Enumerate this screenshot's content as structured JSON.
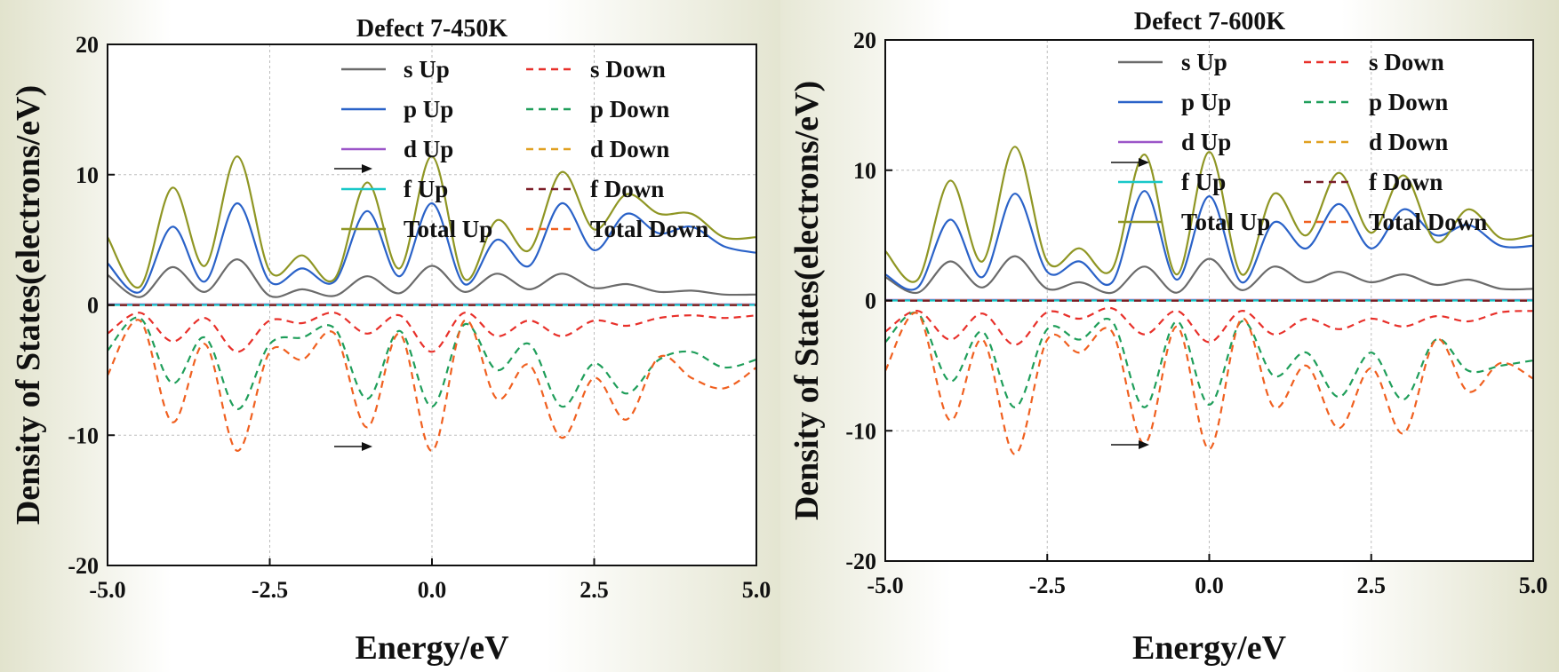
{
  "legend_labels": {
    "s_up": "s Up",
    "s_down": "s Down",
    "p_up": "p Up",
    "p_down": "p Down",
    "d_up": "d Up",
    "d_down": "d Down",
    "f_up": "f Up",
    "f_down": "f Down",
    "total_up": "Total Up",
    "total_down": "Total Down"
  },
  "series_colors": {
    "s_up": "#6b6b6b",
    "s_down": "#e8302a",
    "p_up": "#2a62c8",
    "p_down": "#1f9e5a",
    "d_up": "#9b55c8",
    "d_down": "#e0a020",
    "f_up": "#18c8c8",
    "f_down": "#7a1e28",
    "total_up": "#8f9624",
    "total_down": "#f06020"
  },
  "chart_data": [
    {
      "type": "line",
      "title": "Defect 7-450K",
      "xlabel": "Energy/eV",
      "ylabel": "Density of States(electrons/eV)",
      "xlim": [
        -5.0,
        5.0
      ],
      "ylim": [
        -20,
        20
      ],
      "xticks": [
        "-5.0",
        "-2.5",
        "0.0",
        "2.5",
        "5.0"
      ],
      "yticks": [
        "-20",
        "-10",
        "0",
        "10",
        "20"
      ],
      "x": [
        -5.0,
        -4.5,
        -4.0,
        -3.5,
        -3.0,
        -2.5,
        -2.0,
        -1.5,
        -1.0,
        -0.5,
        0.0,
        0.5,
        1.0,
        1.5,
        2.0,
        2.5,
        3.0,
        3.5,
        4.0,
        4.5,
        5.0
      ],
      "series": [
        {
          "key": "s_up",
          "dashed": false,
          "values": [
            2.3,
            0.6,
            2.9,
            1.0,
            3.5,
            0.7,
            1.2,
            0.7,
            2.2,
            0.9,
            3.0,
            1.0,
            2.4,
            1.2,
            2.4,
            1.3,
            1.6,
            1.0,
            1.1,
            0.8,
            0.8
          ]
        },
        {
          "key": "p_up",
          "dashed": false,
          "values": [
            3.2,
            1.0,
            6.0,
            1.8,
            7.8,
            1.8,
            2.8,
            1.8,
            7.2,
            2.2,
            7.8,
            1.6,
            5.0,
            3.0,
            7.8,
            4.2,
            7.0,
            5.5,
            6.0,
            4.5,
            4.0
          ]
        },
        {
          "key": "d_up",
          "dashed": false,
          "values": [
            0.05,
            0.05,
            0.05,
            0.05,
            0.05,
            0.05,
            0.05,
            0.05,
            0.05,
            0.05,
            0.05,
            0.05,
            0.05,
            0.05,
            0.05,
            0.05,
            0.05,
            0.05,
            0.05,
            0.05,
            0.05
          ]
        },
        {
          "key": "f_up",
          "dashed": false,
          "values": [
            0.0,
            0.0,
            0.0,
            0.0,
            0.0,
            0.0,
            0.0,
            0.0,
            0.0,
            0.0,
            0.0,
            0.0,
            0.0,
            0.0,
            0.0,
            0.0,
            0.0,
            0.0,
            0.0,
            0.0,
            0.0
          ]
        },
        {
          "key": "total_up",
          "dashed": false,
          "values": [
            5.2,
            1.4,
            9.0,
            3.0,
            11.4,
            2.6,
            3.8,
            2.0,
            9.4,
            2.8,
            11.4,
            2.0,
            6.5,
            4.2,
            10.2,
            5.8,
            8.5,
            7.0,
            7.0,
            5.2,
            5.2
          ]
        },
        {
          "key": "s_down",
          "dashed": true,
          "values": [
            -2.2,
            -0.6,
            -2.8,
            -1.0,
            -3.6,
            -1.2,
            -1.4,
            -0.6,
            -2.2,
            -0.8,
            -3.6,
            -0.6,
            -2.4,
            -1.2,
            -2.4,
            -1.2,
            -1.6,
            -1.0,
            -0.8,
            -1.0,
            -0.8
          ]
        },
        {
          "key": "p_down",
          "dashed": true,
          "values": [
            -3.5,
            -1.0,
            -6.0,
            -2.5,
            -8.0,
            -3.0,
            -2.5,
            -1.8,
            -7.2,
            -2.0,
            -7.8,
            -1.5,
            -5.0,
            -3.0,
            -7.8,
            -4.5,
            -6.8,
            -4.2,
            -3.6,
            -4.8,
            -4.2
          ]
        },
        {
          "key": "d_down",
          "dashed": true,
          "values": [
            0.0,
            0.0,
            0.0,
            0.0,
            0.0,
            0.0,
            0.0,
            0.0,
            0.0,
            0.0,
            0.0,
            0.0,
            0.0,
            0.0,
            0.0,
            0.0,
            0.0,
            0.0,
            0.0,
            0.0,
            0.0
          ]
        },
        {
          "key": "f_down",
          "dashed": true,
          "values": [
            -0.02,
            -0.02,
            -0.02,
            -0.02,
            -0.02,
            -0.02,
            -0.02,
            -0.02,
            -0.02,
            -0.02,
            -0.02,
            -0.02,
            -0.02,
            -0.02,
            -0.02,
            -0.02,
            -0.02,
            -0.02,
            -0.02,
            -0.02,
            -0.02
          ]
        },
        {
          "key": "total_down",
          "dashed": true,
          "values": [
            -5.4,
            -1.2,
            -9.0,
            -3.0,
            -11.2,
            -3.6,
            -4.2,
            -2.2,
            -9.4,
            -2.2,
            -11.2,
            -1.2,
            -7.2,
            -4.6,
            -10.2,
            -5.6,
            -8.8,
            -4.0,
            -5.6,
            -6.4,
            -4.8
          ]
        }
      ],
      "legend": {
        "location": "top-right",
        "columns": 2
      }
    },
    {
      "type": "line",
      "title": "Defect 7-600K",
      "xlabel": "Energy/eV",
      "ylabel": "Density of States(electrons/eV)",
      "xlim": [
        -5.0,
        5.0
      ],
      "ylim": [
        -20,
        20
      ],
      "xticks": [
        "-5.0",
        "-2.5",
        "0.0",
        "2.5",
        "5.0"
      ],
      "yticks": [
        "-20",
        "-10",
        "0",
        "10",
        "20"
      ],
      "x": [
        -5.0,
        -4.5,
        -4.0,
        -3.5,
        -3.0,
        -2.5,
        -2.0,
        -1.5,
        -1.0,
        -0.5,
        0.0,
        0.5,
        1.0,
        1.5,
        2.0,
        2.5,
        3.0,
        3.5,
        4.0,
        4.5,
        5.0
      ],
      "series": [
        {
          "key": "s_up",
          "dashed": false,
          "values": [
            1.8,
            0.6,
            3.0,
            1.0,
            3.4,
            0.9,
            1.4,
            0.6,
            2.6,
            0.6,
            3.2,
            0.8,
            2.6,
            1.4,
            2.2,
            1.4,
            2.0,
            1.2,
            1.6,
            0.9,
            0.9
          ]
        },
        {
          "key": "p_up",
          "dashed": false,
          "values": [
            2.0,
            1.0,
            6.2,
            1.8,
            8.2,
            2.2,
            3.0,
            1.4,
            8.4,
            1.6,
            8.0,
            1.4,
            6.0,
            4.0,
            7.4,
            4.0,
            7.0,
            5.0,
            5.8,
            4.2,
            4.2
          ]
        },
        {
          "key": "d_up",
          "dashed": false,
          "values": [
            0.05,
            0.05,
            0.05,
            0.05,
            0.05,
            0.05,
            0.05,
            0.05,
            0.05,
            0.05,
            0.05,
            0.05,
            0.05,
            0.05,
            0.05,
            0.05,
            0.05,
            0.05,
            0.05,
            0.05,
            0.05
          ]
        },
        {
          "key": "f_up",
          "dashed": false,
          "values": [
            0.0,
            0.0,
            0.0,
            0.0,
            0.0,
            0.0,
            0.0,
            0.0,
            0.0,
            0.0,
            0.0,
            0.0,
            0.0,
            0.0,
            0.0,
            0.0,
            0.0,
            0.0,
            0.0,
            0.0,
            0.0
          ]
        },
        {
          "key": "total_up",
          "dashed": false,
          "values": [
            3.8,
            1.6,
            9.2,
            3.0,
            11.8,
            3.0,
            4.0,
            2.4,
            11.2,
            2.0,
            11.4,
            2.0,
            8.2,
            5.0,
            9.8,
            5.2,
            9.6,
            4.5,
            7.0,
            4.8,
            5.0
          ]
        },
        {
          "key": "s_down",
          "dashed": true,
          "values": [
            -2.4,
            -0.8,
            -3.0,
            -1.0,
            -3.4,
            -0.9,
            -1.4,
            -0.6,
            -2.6,
            -0.8,
            -3.2,
            -0.8,
            -2.6,
            -1.4,
            -2.2,
            -1.4,
            -2.0,
            -1.2,
            -1.6,
            -0.9,
            -0.8
          ]
        },
        {
          "key": "p_down",
          "dashed": true,
          "values": [
            -3.2,
            -1.0,
            -6.2,
            -2.4,
            -8.2,
            -2.2,
            -3.0,
            -1.6,
            -8.2,
            -1.6,
            -8.0,
            -1.6,
            -5.8,
            -4.0,
            -7.4,
            -4.0,
            -7.6,
            -3.0,
            -5.4,
            -5.0,
            -4.6
          ]
        },
        {
          "key": "d_down",
          "dashed": true,
          "values": [
            0.0,
            0.0,
            0.0,
            0.0,
            0.0,
            0.0,
            0.0,
            0.0,
            0.0,
            0.0,
            0.0,
            0.0,
            0.0,
            0.0,
            0.0,
            0.0,
            0.0,
            0.0,
            0.0,
            0.0,
            0.0
          ]
        },
        {
          "key": "f_down",
          "dashed": true,
          "values": [
            -0.02,
            -0.02,
            -0.02,
            -0.02,
            -0.02,
            -0.02,
            -0.02,
            -0.02,
            -0.02,
            -0.02,
            -0.02,
            -0.02,
            -0.02,
            -0.02,
            -0.02,
            -0.02,
            -0.02,
            -0.02,
            -0.02,
            -0.02,
            -0.02
          ]
        },
        {
          "key": "total_down",
          "dashed": true,
          "values": [
            -5.4,
            -1.0,
            -9.2,
            -3.0,
            -11.8,
            -3.0,
            -4.0,
            -2.4,
            -11.0,
            -2.0,
            -11.4,
            -1.4,
            -8.2,
            -5.0,
            -9.8,
            -5.2,
            -10.2,
            -3.0,
            -7.0,
            -4.8,
            -6.0
          ]
        }
      ],
      "legend": {
        "location": "top-right",
        "columns": 2
      }
    }
  ]
}
